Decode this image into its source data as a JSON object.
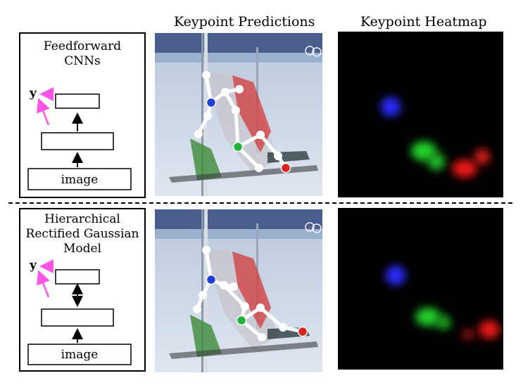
{
  "headers": {
    "predictions": "Keypoint Predictions",
    "heatmap": "Keypoint Heatmap"
  },
  "rows": [
    {
      "model_title_lines": [
        "Feedforward",
        "CNNs"
      ],
      "output_label": "y",
      "input_label": "image",
      "connection": "feedforward"
    },
    {
      "model_title_lines": [
        "Hierarchical",
        "Rectified Gaussian",
        "Model"
      ],
      "output_label": "y",
      "input_label": "image",
      "connection": "bidirectional"
    }
  ],
  "colors": {
    "keypoint_blue": "#1f3fd6",
    "keypoint_green": "#22b33a",
    "keypoint_red": "#d8261f",
    "feedback_arrow": "#ff55e6",
    "skeleton": "#ffffff"
  }
}
